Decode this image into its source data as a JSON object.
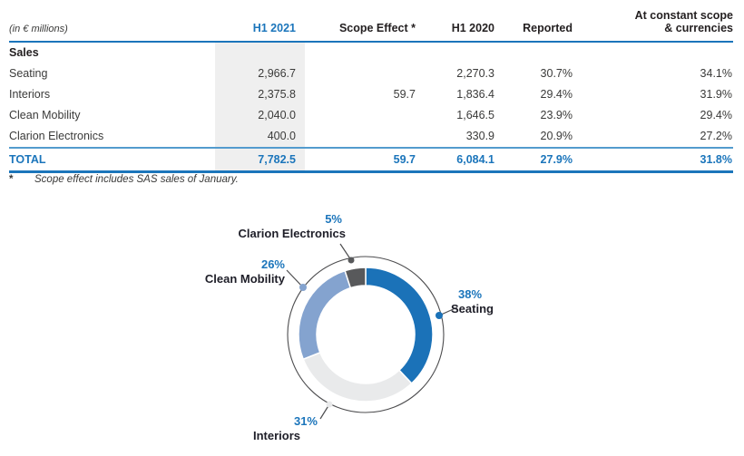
{
  "table": {
    "unit_label": "(in € millions)",
    "headers": {
      "h1_2021": "H1 2021",
      "scope_effect": "Scope Effect *",
      "h1_2020": "H1 2020",
      "reported": "Reported",
      "constant_line1": "At constant scope",
      "constant_line2": "& currencies"
    },
    "section_label": "Sales",
    "rows": [
      {
        "label": "Seating",
        "h1_2021": "2,966.7",
        "scope_effect": "",
        "h1_2020": "2,270.3",
        "reported": "30.7%",
        "constant": "34.1%"
      },
      {
        "label": "Interiors",
        "h1_2021": "2,375.8",
        "scope_effect": "59.7",
        "h1_2020": "1,836.4",
        "reported": "29.4%",
        "constant": "31.9%"
      },
      {
        "label": "Clean Mobility",
        "h1_2021": "2,040.0",
        "scope_effect": "",
        "h1_2020": "1,646.5",
        "reported": "23.9%",
        "constant": "29.4%"
      },
      {
        "label": "Clarion Electronics",
        "h1_2021": "400.0",
        "scope_effect": "",
        "h1_2020": "330.9",
        "reported": "20.9%",
        "constant": "27.2%"
      }
    ],
    "total": {
      "label": "TOTAL",
      "h1_2021": "7,782.5",
      "scope_effect": "59.7",
      "h1_2020": "6,084.1",
      "reported": "27.9%",
      "constant": "31.8%"
    }
  },
  "footnote": {
    "marker": "*",
    "text": "Scope effect includes SAS sales of January."
  },
  "chart_data": {
    "type": "pie",
    "subtype": "donut",
    "title": "",
    "categories": [
      "Seating",
      "Interiors",
      "Clean Mobility",
      "Clarion Electronics"
    ],
    "values": [
      38,
      31,
      26,
      5
    ],
    "labels": [
      "38%",
      "31%",
      "26%",
      "5%"
    ],
    "colors": [
      "#1b72b8",
      "#e9eaeb",
      "#84a3cf",
      "#58595b"
    ],
    "start_angle_deg": 0,
    "direction": "clockwise",
    "inner_radius_ratio": 0.73,
    "legend_position": "outside-callouts"
  },
  "colors": {
    "brand_blue": "#1b75bb",
    "light_rule_blue": "#539bce",
    "column_shade": "#efefef",
    "body_text": "#3a3a39",
    "heading_text": "#231f20",
    "outline_gray": "#4d4d4f"
  }
}
